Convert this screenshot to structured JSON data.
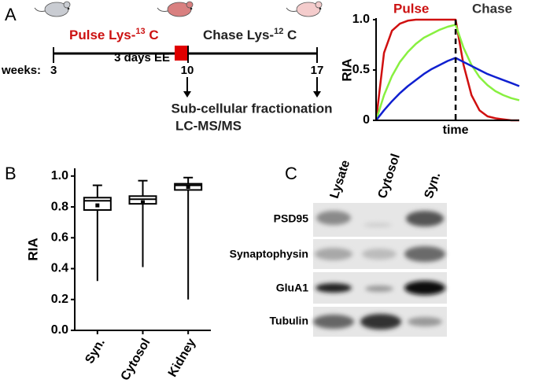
{
  "panel_labels": [
    "A",
    "B",
    "C"
  ],
  "timeline": {
    "pulse": [
      "Pulse Lys-",
      "13",
      " C"
    ],
    "chase": [
      "Chase Lys-",
      "12",
      " C"
    ],
    "enrichment": "3 days EE",
    "weeks_label": "weeks:",
    "weeks": [
      "3",
      "10",
      "17"
    ],
    "analysis": [
      "Sub-cellular fractionation",
      "LC-MS/MS"
    ]
  },
  "blot": {
    "lanes": [
      "Lysate",
      "Cytosol",
      "Syn."
    ],
    "rows": [
      "PSD95",
      "Synaptophysin",
      "GluA1",
      "Tubulin"
    ]
  },
  "chart_data": [
    {
      "type": "line",
      "annotations": [
        "Pulse",
        "Chase"
      ],
      "annotation_colors": [
        "#cc1111",
        "#333333"
      ],
      "ylabel": "RIA",
      "xlabel": "time",
      "x": [
        0,
        1,
        2,
        3,
        4,
        5,
        6,
        7,
        8,
        9,
        10,
        11,
        12,
        13,
        14,
        15,
        16,
        17,
        18
      ],
      "xlim": [
        0,
        18
      ],
      "ylim": [
        0,
        1
      ],
      "yticks": [
        0,
        0.5,
        {
          "value": 1,
          "label": "1.0"
        }
      ],
      "dashed_line_x": 10,
      "series": [
        {
          "color": "#d01010",
          "values": [
            0,
            0.67,
            0.89,
            0.96,
            0.99,
            1,
            1,
            1,
            1,
            1,
            1,
            0.55,
            0.25,
            0.1,
            0.04,
            0.02,
            0.01,
            0,
            0
          ]
        },
        {
          "color": "#88f040",
          "values": [
            0,
            0.25,
            0.44,
            0.58,
            0.68,
            0.76,
            0.82,
            0.86,
            0.9,
            0.93,
            0.95,
            0.72,
            0.55,
            0.43,
            0.35,
            0.29,
            0.25,
            0.22,
            0.2
          ]
        },
        {
          "color": "#1020d0",
          "values": [
            0,
            0.1,
            0.19,
            0.27,
            0.34,
            0.4,
            0.46,
            0.51,
            0.55,
            0.59,
            0.62,
            0.58,
            0.54,
            0.5,
            0.46,
            0.43,
            0.4,
            0.37,
            0.34
          ]
        }
      ]
    },
    {
      "type": "box",
      "ylabel": "RIA",
      "categories": [
        "Syn.",
        "Cytosol",
        "Kidney"
      ],
      "ylim": [
        0,
        1.05
      ],
      "yticks": [
        {
          "value": 0,
          "label": "0.0"
        },
        0.2,
        0.4,
        0.6,
        0.8,
        {
          "value": 1,
          "label": "1.0"
        }
      ],
      "boxes": [
        {
          "min": 0.32,
          "q1": 0.78,
          "median": 0.84,
          "q3": 0.86,
          "max": 0.94,
          "mean": 0.81
        },
        {
          "min": 0.41,
          "q1": 0.82,
          "median": 0.85,
          "q3": 0.87,
          "max": 0.97,
          "mean": 0.83
        },
        {
          "min": 0.2,
          "q1": 0.91,
          "median": 0.94,
          "q3": 0.95,
          "max": 0.99,
          "mean": 0.93
        }
      ]
    }
  ]
}
